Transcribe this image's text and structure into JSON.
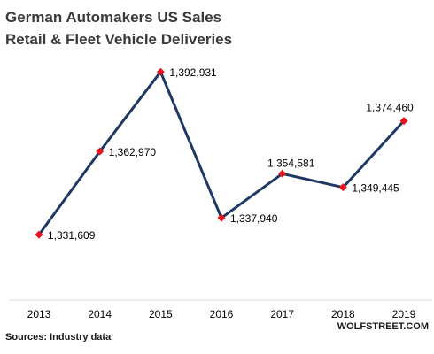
{
  "chart_data": {
    "type": "line",
    "title_lines": [
      "German Automakers US Sales",
      "Retail & Fleet Vehicle Deliveries"
    ],
    "categories": [
      "2013",
      "2014",
      "2015",
      "2016",
      "2017",
      "2018",
      "2019"
    ],
    "series": [
      {
        "values": [
          1331609,
          1362970,
          1392931,
          1337940,
          1354581,
          1349445,
          1374460
        ],
        "labels": [
          "1,331,609",
          "1,362,970",
          "1,392,931",
          "1,337,940",
          "1,354,581",
          "1,349,445",
          "1,374,460"
        ]
      }
    ],
    "ylim": [
      1310000,
      1400000
    ],
    "grid": false,
    "legend": "none",
    "line_color": "#1f3864",
    "marker_color": "#e8141c"
  },
  "footer": {
    "source": "Sources: Industry data",
    "credit": "WOLFSTREET.COM"
  }
}
